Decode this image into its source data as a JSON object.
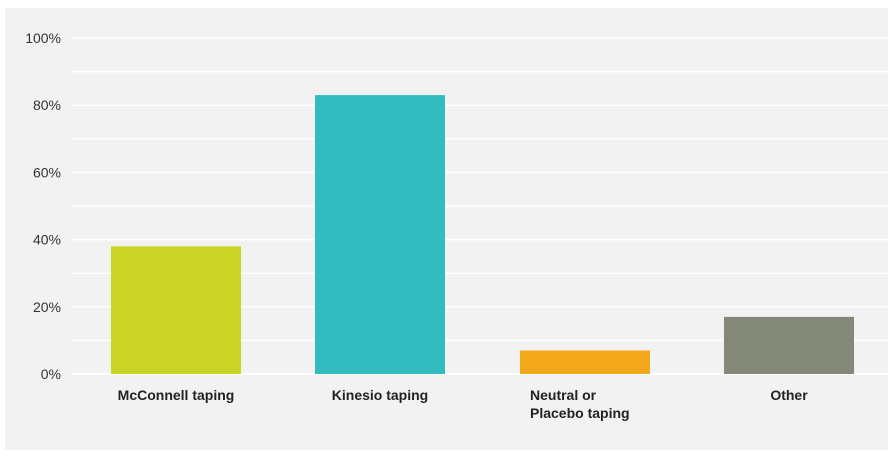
{
  "chart_data": {
    "type": "bar",
    "categories": [
      [
        "McConnell taping"
      ],
      [
        "Kinesio taping"
      ],
      [
        "Neutral or",
        "Placebo taping"
      ],
      [
        "Other"
      ]
    ],
    "values": [
      38,
      83,
      7,
      17
    ],
    "colors": [
      "#cad424",
      "#33bcc0",
      "#f3a81c",
      "#848879"
    ],
    "yticks": [
      "0%",
      "20%",
      "40%",
      "60%",
      "80%",
      "100%"
    ],
    "ytick_values": [
      0,
      20,
      40,
      60,
      80,
      100
    ],
    "ylim": [
      0,
      100
    ],
    "grid": true,
    "grid_minor_step": 10,
    "title": "",
    "xlabel": "",
    "ylabel": ""
  }
}
